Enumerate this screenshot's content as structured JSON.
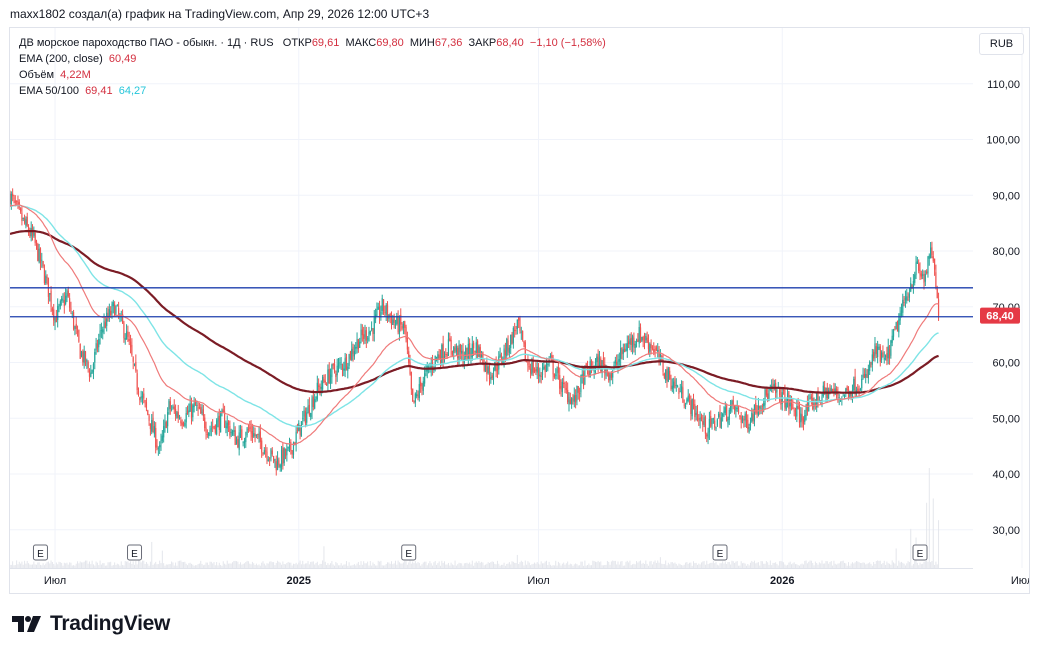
{
  "caption": "maxx1802 создал(а) график на TradingView.com, Апр 29, 2026 12:00 UTC+3",
  "legend": {
    "symbol": "ДВ морское пароходство ПАО - обыкн. · 1Д · RUS",
    "open_label": "ОТКР",
    "open": "69,61",
    "high_label": "МАКС",
    "high": "69,80",
    "low_label": "МИН",
    "low": "67,36",
    "close_label": "ЗАКР",
    "close": "68,40",
    "change": "−1,10 (−1,58%)",
    "ema200_label": "EMA (200, close)",
    "ema200_value": "60,49",
    "volume_label": "Объём",
    "volume_value": "4,22M",
    "ema50_100_label": "EMA 50/100",
    "ema50_value": "69,41",
    "ema100_value": "64,27"
  },
  "unit_button": "RUB",
  "brand": {
    "name": "TradingView",
    "logo_icon": "tradingview-logo-icon"
  },
  "chart_data": {
    "type": "candlestick",
    "y_axis": {
      "ticks": [
        "110,00",
        "100,00",
        "90,00",
        "80,00",
        "70,00",
        "60,00",
        "50,00",
        "40,00",
        "30,00"
      ],
      "range": [
        25,
        116
      ]
    },
    "x_axis": {
      "ticks": [
        "Июл",
        "2025",
        "Июл",
        "2026",
        "Июл"
      ]
    },
    "last_price_label": "68,40",
    "last_price": 68.4,
    "horizontal_lines": [
      {
        "value": 73.4,
        "color": "#1e3fae"
      },
      {
        "value": 68.2,
        "color": "#1e3fae"
      }
    ],
    "earnings_marker_label": "E",
    "earnings_markers": [
      "2024-06-20",
      "2024-08-30",
      "2025-03-25",
      "2025-11-15",
      "2026-04-15"
    ],
    "date_range": [
      "2024-05-28",
      "2026-05-25"
    ],
    "last_date": "2026-04-29",
    "close_path": [
      [
        "2024-05-28",
        90
      ],
      [
        "2024-06-05",
        86
      ],
      [
        "2024-06-15",
        82
      ],
      [
        "2024-06-25",
        74
      ],
      [
        "2024-07-01",
        68
      ],
      [
        "2024-07-10",
        72
      ],
      [
        "2024-07-20",
        62
      ],
      [
        "2024-07-28",
        58
      ],
      [
        "2024-08-05",
        66
      ],
      [
        "2024-08-15",
        70
      ],
      [
        "2024-08-25",
        64
      ],
      [
        "2024-09-01",
        56
      ],
      [
        "2024-09-10",
        50
      ],
      [
        "2024-09-18",
        44
      ],
      [
        "2024-09-25",
        52
      ],
      [
        "2024-10-05",
        50
      ],
      [
        "2024-10-15",
        52
      ],
      [
        "2024-10-25",
        48
      ],
      [
        "2024-11-05",
        50
      ],
      [
        "2024-11-15",
        46
      ],
      [
        "2024-11-25",
        48
      ],
      [
        "2024-12-05",
        45
      ],
      [
        "2024-12-15",
        42
      ],
      [
        "2024-12-25",
        44
      ],
      [
        "2025-01-05",
        50
      ],
      [
        "2025-01-15",
        55
      ],
      [
        "2025-01-25",
        58
      ],
      [
        "2025-02-05",
        60
      ],
      [
        "2025-02-15",
        64
      ],
      [
        "2025-02-25",
        66
      ],
      [
        "2025-03-05",
        70
      ],
      [
        "2025-03-15",
        67
      ],
      [
        "2025-03-22",
        66
      ],
      [
        "2025-03-28",
        52
      ],
      [
        "2025-04-05",
        57
      ],
      [
        "2025-04-15",
        61
      ],
      [
        "2025-04-25",
        63
      ],
      [
        "2025-05-05",
        61
      ],
      [
        "2025-05-15",
        63
      ],
      [
        "2025-05-25",
        58
      ],
      [
        "2025-06-01",
        60
      ],
      [
        "2025-06-10",
        64
      ],
      [
        "2025-06-15",
        67
      ],
      [
        "2025-06-22",
        60
      ],
      [
        "2025-07-01",
        58
      ],
      [
        "2025-07-10",
        60
      ],
      [
        "2025-07-20",
        55
      ],
      [
        "2025-07-28",
        53
      ],
      [
        "2025-08-05",
        58
      ],
      [
        "2025-08-15",
        60
      ],
      [
        "2025-08-25",
        58
      ],
      [
        "2025-09-05",
        63
      ],
      [
        "2025-09-15",
        65
      ],
      [
        "2025-09-25",
        63
      ],
      [
        "2025-10-05",
        58
      ],
      [
        "2025-10-15",
        55
      ],
      [
        "2025-10-25",
        52
      ],
      [
        "2025-11-05",
        48
      ],
      [
        "2025-11-15",
        50
      ],
      [
        "2025-11-25",
        52
      ],
      [
        "2025-12-05",
        49
      ],
      [
        "2025-12-15",
        53
      ],
      [
        "2025-12-25",
        55
      ],
      [
        "2026-01-05",
        53
      ],
      [
        "2026-01-15",
        50
      ],
      [
        "2026-01-25",
        53
      ],
      [
        "2026-02-05",
        55
      ],
      [
        "2026-02-15",
        54
      ],
      [
        "2026-02-25",
        56
      ],
      [
        "2026-03-05",
        57
      ],
      [
        "2026-03-12",
        62
      ],
      [
        "2026-03-20",
        60
      ],
      [
        "2026-03-28",
        66
      ],
      [
        "2026-04-05",
        72
      ],
      [
        "2026-04-12",
        77
      ],
      [
        "2026-04-18",
        75
      ],
      [
        "2026-04-24",
        80
      ],
      [
        "2026-04-29",
        68.4
      ]
    ],
    "volume_max": 46,
    "volume_spikes": [
      [
        "2024-09-12",
        12
      ],
      [
        "2024-09-20",
        8
      ],
      [
        "2025-01-20",
        10
      ],
      [
        "2025-03-26",
        8
      ],
      [
        "2025-06-15",
        6
      ],
      [
        "2025-10-01",
        5
      ],
      [
        "2026-03-28",
        9
      ],
      [
        "2026-04-08",
        18
      ],
      [
        "2026-04-12",
        14
      ],
      [
        "2026-04-20",
        30
      ],
      [
        "2026-04-22",
        46
      ],
      [
        "2026-04-25",
        32
      ],
      [
        "2026-04-29",
        22
      ]
    ]
  }
}
